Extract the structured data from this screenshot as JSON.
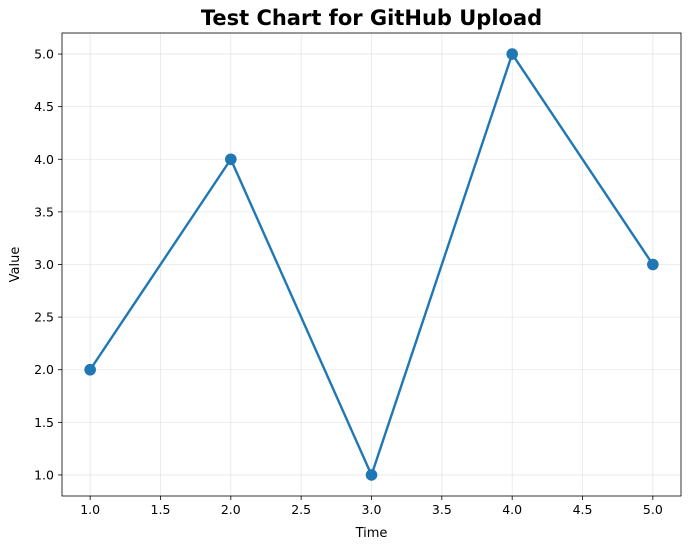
{
  "chart_data": {
    "type": "line",
    "title": "Test Chart for GitHub Upload",
    "xlabel": "Time",
    "ylabel": "Value",
    "x": [
      1,
      2,
      3,
      4,
      5
    ],
    "series": [
      {
        "values": [
          2,
          4,
          1,
          5,
          3
        ]
      }
    ],
    "xlim": [
      0.8,
      5.2
    ],
    "ylim": [
      0.8,
      5.2
    ],
    "xticks": [
      "1.0",
      "1.5",
      "2.0",
      "2.5",
      "3.0",
      "3.5",
      "4.0",
      "4.5",
      "5.0"
    ],
    "yticks": [
      "1.0",
      "1.5",
      "2.0",
      "2.5",
      "3.0",
      "3.5",
      "4.0",
      "4.5",
      "5.0"
    ],
    "grid": true,
    "line_color": "#1f77b4",
    "marker": "circle"
  }
}
